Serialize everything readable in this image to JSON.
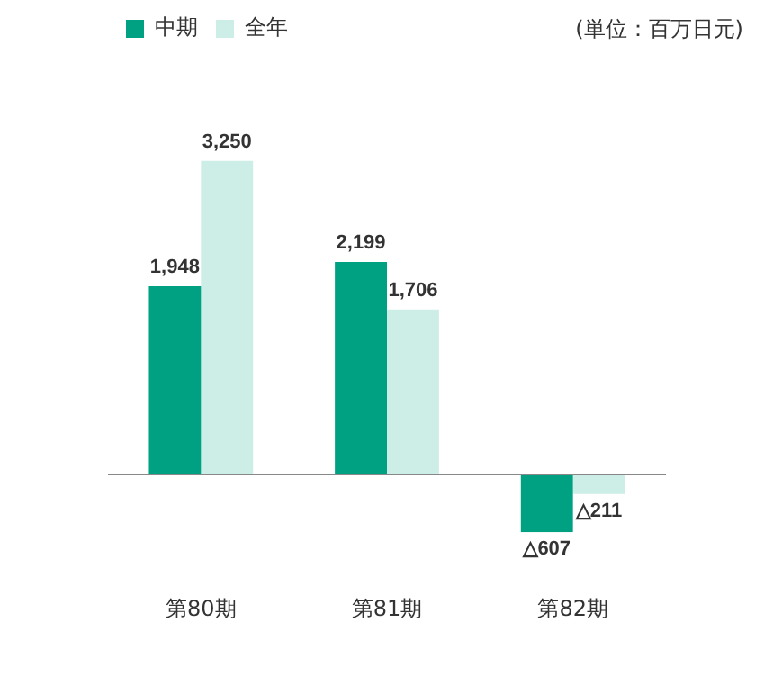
{
  "chart_data": {
    "type": "bar",
    "categories": [
      "第80期",
      "第81期",
      "第82期"
    ],
    "series": [
      {
        "name": "中期",
        "color": "#00a183",
        "values": [
          1948,
          2199,
          -607
        ],
        "value_labels": [
          "1,948",
          "2,199",
          null
        ]
      },
      {
        "name": "全年",
        "color": "#cdede7",
        "values": [
          3250,
          1706,
          -211
        ],
        "value_labels": [
          "3,250",
          "1,706",
          null
        ]
      }
    ],
    "legend": "top left",
    "annotations": [
      "(単位：百万日元)",
      {
        "text": "△607",
        "x": "第82期",
        "y": -607
      },
      {
        "text": "△211",
        "x": "第82期",
        "y": -211
      }
    ]
  }
}
